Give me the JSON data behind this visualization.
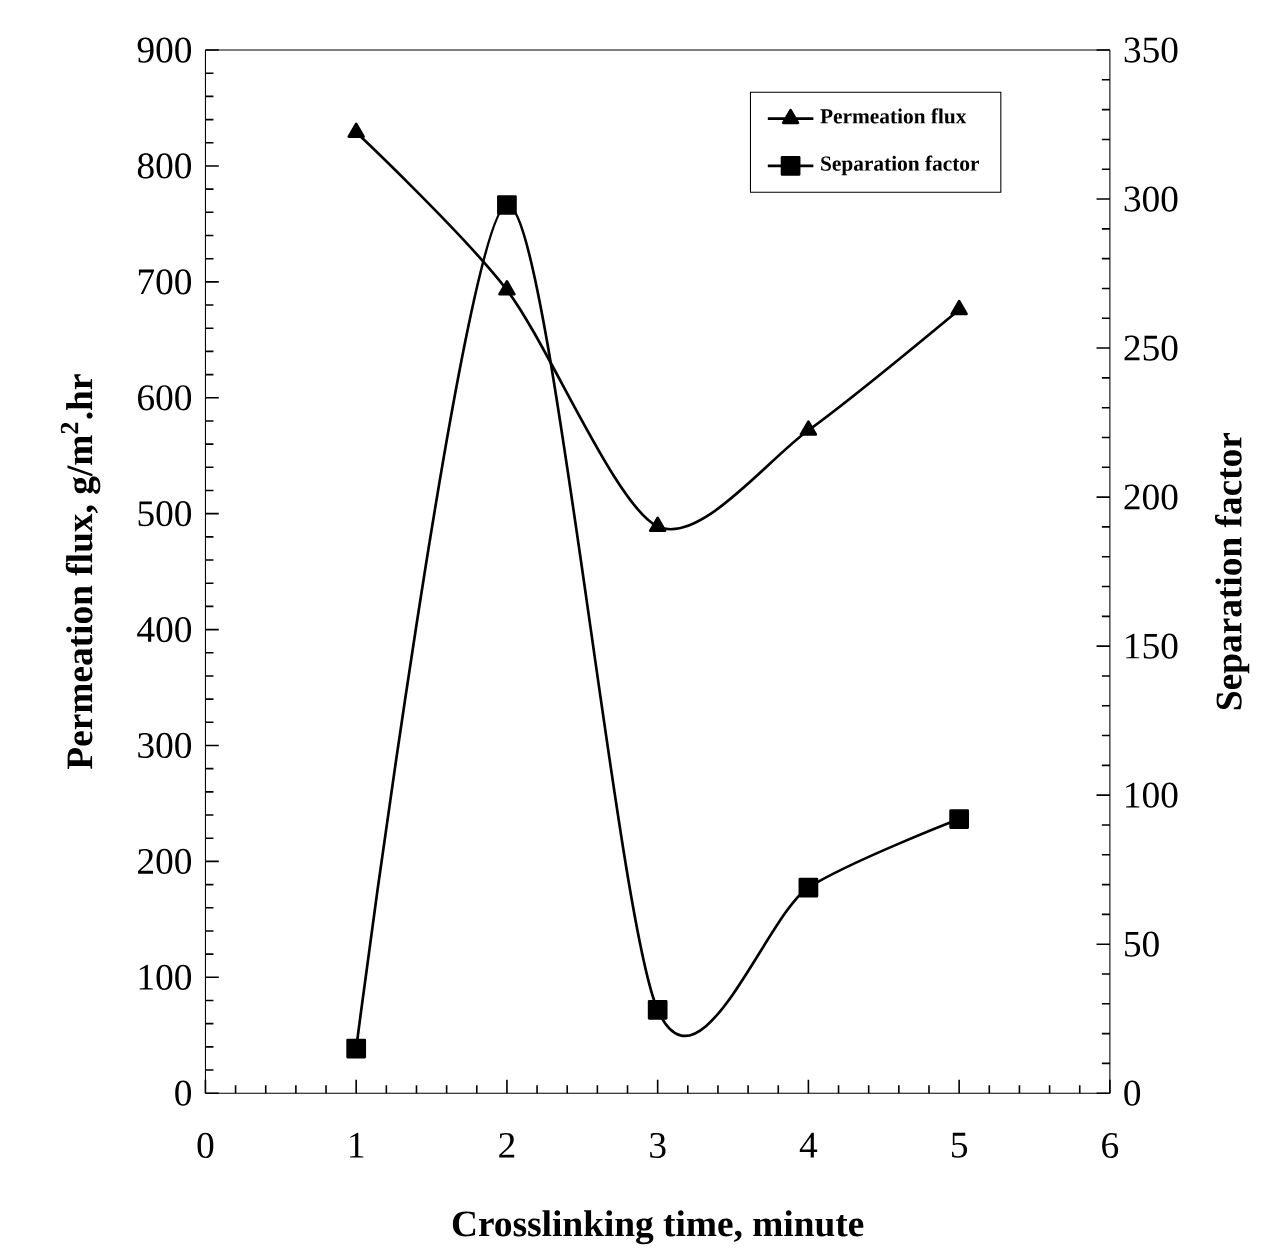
{
  "chart_data": {
    "type": "line",
    "xlabel": "Crosslinking time, minute",
    "ylabel": "Permeation flux, g/m$^{2}$.hr",
    "y2label": "Separation factor",
    "x": [
      1,
      2,
      3,
      4,
      5
    ],
    "series": [
      {
        "name": "Permeation flux",
        "color": "#000000",
        "marker": "triangle",
        "values": [
          829,
          693,
          489,
          572,
          676
        ]
      },
      {
        "name": "Separation factor",
        "color": "#000000",
        "marker": "square",
        "axis": "y2",
        "values": [
          15,
          298,
          28,
          69,
          92
        ]
      }
    ],
    "xlim": [
      0,
      6
    ],
    "xticks": [
      0,
      1,
      2,
      3,
      4,
      5,
      6
    ],
    "ylim": [
      0,
      900
    ],
    "yticks": [
      0,
      100,
      200,
      300,
      400,
      500,
      600,
      700,
      800,
      900
    ],
    "y2lim": [
      0,
      350
    ],
    "y2ticks": [
      0,
      50,
      100,
      150,
      200,
      250,
      300,
      350
    ],
    "legend": "top right",
    "grid": false,
    "line_style": "solid"
  }
}
